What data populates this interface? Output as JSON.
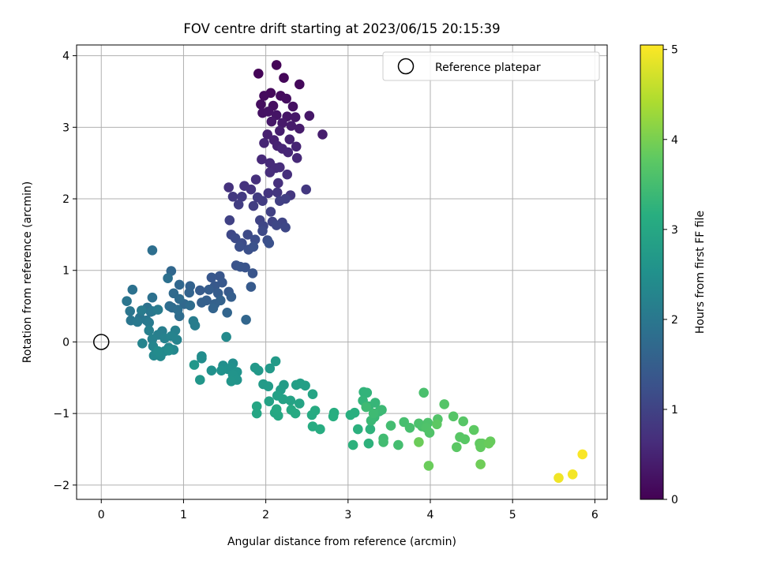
{
  "chart_data": {
    "type": "scatter",
    "title": "FOV centre drift starting at 2023/06/15 20:15:39",
    "xlabel": "Angular distance from reference (arcmin)",
    "ylabel": "Rotation from reference (arcmin)",
    "xlim": [
      -0.3,
      6.15
    ],
    "ylim": [
      -2.2,
      4.15
    ],
    "xticks": [
      0,
      1,
      2,
      3,
      4,
      5,
      6
    ],
    "yticks": [
      -2,
      -1,
      0,
      1,
      2,
      3,
      4
    ],
    "xtick_labels": [
      "0",
      "1",
      "2",
      "3",
      "4",
      "5",
      "6"
    ],
    "ytick_labels": [
      "−2",
      "−1",
      "0",
      "1",
      "2",
      "3",
      "4"
    ],
    "grid": true,
    "legend": {
      "position": "top-right",
      "entries": [
        "Reference platepar"
      ]
    },
    "reference_point": {
      "name": "Reference platepar",
      "x": 0,
      "y": 0
    },
    "colorbar": {
      "label": "Hours from first FF file",
      "colormap": "viridis",
      "range": [
        0,
        5.05
      ],
      "ticks": [
        0,
        1,
        2,
        3,
        4,
        5
      ],
      "tick_labels": [
        "0",
        "1",
        "2",
        "3",
        "4",
        "5"
      ]
    },
    "series": [
      {
        "c_encoding": "hours",
        "points": [
          [
            2.13,
            3.87,
            0.05
          ],
          [
            1.91,
            3.75,
            0.05
          ],
          [
            2.22,
            3.69,
            0.08
          ],
          [
            2.41,
            3.6,
            0.1
          ],
          [
            2.06,
            3.48,
            0.12
          ],
          [
            1.98,
            3.44,
            0.14
          ],
          [
            2.18,
            3.44,
            0.15
          ],
          [
            2.25,
            3.4,
            0.17
          ],
          [
            1.94,
            3.32,
            0.18
          ],
          [
            2.09,
            3.3,
            0.2
          ],
          [
            2.33,
            3.29,
            0.22
          ],
          [
            1.96,
            3.2,
            0.23
          ],
          [
            2.03,
            3.22,
            0.25
          ],
          [
            2.13,
            3.17,
            0.27
          ],
          [
            2.26,
            3.15,
            0.28
          ],
          [
            2.36,
            3.14,
            0.3
          ],
          [
            2.53,
            3.16,
            0.31
          ],
          [
            2.07,
            3.08,
            0.33
          ],
          [
            2.2,
            3.06,
            0.35
          ],
          [
            2.31,
            3.02,
            0.37
          ],
          [
            2.41,
            2.98,
            0.38
          ],
          [
            2.69,
            2.9,
            0.4
          ],
          [
            2.17,
            2.95,
            0.42
          ],
          [
            2.02,
            2.9,
            0.43
          ],
          [
            2.1,
            2.82,
            0.45
          ],
          [
            2.29,
            2.83,
            0.47
          ],
          [
            2.14,
            2.74,
            0.48
          ],
          [
            2.37,
            2.73,
            0.5
          ],
          [
            1.98,
            2.78,
            0.52
          ],
          [
            2.2,
            2.7,
            0.53
          ],
          [
            2.27,
            2.65,
            0.55
          ],
          [
            2.38,
            2.57,
            0.57
          ],
          [
            1.95,
            2.55,
            0.58
          ],
          [
            2.05,
            2.5,
            0.6
          ],
          [
            2.12,
            2.43,
            0.62
          ],
          [
            2.17,
            2.44,
            0.63
          ],
          [
            2.05,
            2.37,
            0.65
          ],
          [
            2.26,
            2.34,
            0.67
          ],
          [
            1.88,
            2.27,
            0.68
          ],
          [
            2.15,
            2.22,
            0.7
          ],
          [
            1.55,
            2.16,
            0.72
          ],
          [
            1.74,
            2.18,
            0.73
          ],
          [
            1.82,
            2.13,
            0.75
          ],
          [
            2.03,
            2.08,
            0.77
          ],
          [
            2.14,
            2.09,
            0.78
          ],
          [
            2.3,
            2.05,
            0.8
          ],
          [
            2.49,
            2.13,
            0.82
          ],
          [
            1.6,
            2.03,
            0.83
          ],
          [
            1.71,
            2.03,
            0.85
          ],
          [
            1.9,
            2.02,
            0.87
          ],
          [
            1.96,
            1.97,
            0.88
          ],
          [
            1.67,
            1.92,
            0.9
          ],
          [
            1.85,
            1.9,
            0.92
          ],
          [
            2.17,
            1.97,
            0.93
          ],
          [
            2.24,
            2.0,
            0.95
          ],
          [
            2.06,
            1.82,
            0.97
          ],
          [
            1.56,
            1.7,
            0.98
          ],
          [
            1.93,
            1.7,
            1.0
          ],
          [
            2.08,
            1.68,
            1.02
          ],
          [
            2.2,
            1.67,
            1.03
          ],
          [
            1.97,
            1.62,
            1.05
          ],
          [
            2.13,
            1.63,
            1.07
          ],
          [
            2.24,
            1.6,
            1.08
          ],
          [
            1.58,
            1.5,
            1.1
          ],
          [
            1.78,
            1.5,
            1.12
          ],
          [
            1.96,
            1.55,
            1.13
          ],
          [
            1.63,
            1.45,
            1.15
          ],
          [
            1.71,
            1.38,
            1.17
          ],
          [
            1.87,
            1.43,
            1.18
          ],
          [
            2.02,
            1.42,
            1.2
          ],
          [
            1.68,
            1.33,
            1.22
          ],
          [
            1.79,
            1.29,
            1.23
          ],
          [
            2.04,
            1.38,
            1.25
          ],
          [
            1.85,
            1.33,
            1.27
          ],
          [
            1.64,
            1.07,
            1.28
          ],
          [
            1.75,
            1.04,
            1.3
          ],
          [
            1.69,
            1.05,
            1.32
          ],
          [
            1.84,
            0.96,
            1.33
          ],
          [
            1.44,
            0.92,
            1.35
          ],
          [
            1.34,
            0.9,
            1.37
          ],
          [
            1.47,
            0.83,
            1.38
          ],
          [
            1.38,
            0.78,
            1.4
          ],
          [
            1.55,
            0.7,
            1.42
          ],
          [
            1.82,
            0.77,
            1.43
          ],
          [
            1.2,
            0.72,
            1.45
          ],
          [
            1.31,
            0.73,
            1.47
          ],
          [
            1.42,
            0.68,
            1.48
          ],
          [
            1.58,
            0.63,
            1.5
          ],
          [
            1.28,
            0.58,
            1.52
          ],
          [
            1.22,
            0.55,
            1.53
          ],
          [
            1.38,
            0.53,
            1.55
          ],
          [
            1.45,
            0.58,
            1.57
          ],
          [
            1.08,
            0.78,
            1.58
          ],
          [
            1.07,
            0.69,
            1.6
          ],
          [
            1.36,
            0.47,
            1.62
          ],
          [
            1.53,
            0.41,
            1.63
          ],
          [
            1.76,
            0.31,
            1.65
          ],
          [
            0.85,
            0.99,
            1.67
          ],
          [
            0.95,
            0.8,
            1.68
          ],
          [
            1.01,
            0.53,
            1.7
          ],
          [
            0.86,
            0.48,
            1.72
          ],
          [
            0.88,
            0.68,
            1.73
          ],
          [
            0.95,
            0.6,
            1.75
          ],
          [
            1.08,
            0.51,
            1.77
          ],
          [
            0.95,
            0.36,
            1.78
          ],
          [
            0.83,
            0.5,
            1.8
          ],
          [
            0.93,
            0.45,
            1.82
          ],
          [
            0.62,
            1.28,
            1.83
          ],
          [
            0.81,
            0.89,
            1.85
          ],
          [
            0.62,
            0.62,
            1.87
          ],
          [
            0.38,
            0.73,
            1.88
          ],
          [
            0.56,
            0.48,
            1.9
          ],
          [
            0.6,
            0.42,
            1.92
          ],
          [
            0.47,
            0.34,
            1.93
          ],
          [
            0.31,
            0.57,
            1.95
          ],
          [
            0.35,
            0.43,
            1.97
          ],
          [
            0.36,
            0.3,
            1.98
          ],
          [
            0.55,
            0.3,
            2.0
          ],
          [
            0.62,
            0.43,
            2.02
          ],
          [
            0.44,
            0.28,
            2.03
          ],
          [
            0.58,
            0.27,
            2.05
          ],
          [
            0.69,
            0.45,
            2.07
          ],
          [
            0.49,
            0.44,
            2.08
          ],
          [
            1.12,
            0.29,
            2.1
          ],
          [
            1.14,
            0.23,
            2.12
          ],
          [
            0.74,
            0.15,
            2.13
          ],
          [
            0.69,
            0.1,
            2.15
          ],
          [
            0.9,
            0.16,
            2.17
          ],
          [
            0.58,
            0.16,
            2.18
          ],
          [
            0.62,
            0.04,
            2.2
          ],
          [
            0.77,
            0.05,
            2.22
          ],
          [
            0.85,
            0.08,
            2.23
          ],
          [
            0.92,
            0.03,
            2.25
          ],
          [
            0.5,
            -0.02,
            2.27
          ],
          [
            0.63,
            -0.06,
            2.28
          ],
          [
            0.82,
            -0.08,
            2.3
          ],
          [
            0.88,
            -0.11,
            2.32
          ],
          [
            0.77,
            -0.13,
            2.33
          ],
          [
            0.64,
            -0.19,
            2.35
          ],
          [
            0.72,
            -0.2,
            2.37
          ],
          [
            1.52,
            0.07,
            2.38
          ],
          [
            0.69,
            -0.13,
            2.4
          ],
          [
            0.82,
            -0.12,
            2.42
          ],
          [
            1.22,
            -0.2,
            2.43
          ],
          [
            1.22,
            -0.23,
            2.45
          ],
          [
            1.6,
            -0.3,
            2.47
          ],
          [
            1.48,
            -0.33,
            2.48
          ],
          [
            1.58,
            -0.36,
            2.5
          ],
          [
            1.54,
            -0.38,
            2.52
          ],
          [
            1.34,
            -0.4,
            2.53
          ],
          [
            1.46,
            -0.4,
            2.55
          ],
          [
            1.65,
            -0.42,
            2.57
          ],
          [
            1.6,
            -0.46,
            2.58
          ],
          [
            1.65,
            -0.53,
            2.6
          ],
          [
            1.58,
            -0.55,
            2.62
          ],
          [
            1.2,
            -0.53,
            2.63
          ],
          [
            1.13,
            -0.32,
            2.65
          ],
          [
            1.87,
            -0.36,
            2.67
          ],
          [
            1.91,
            -0.4,
            2.68
          ],
          [
            2.05,
            -0.37,
            2.7
          ],
          [
            2.12,
            -0.27,
            2.72
          ],
          [
            1.97,
            -0.59,
            2.73
          ],
          [
            2.03,
            -0.62,
            2.75
          ],
          [
            2.22,
            -0.6,
            2.77
          ],
          [
            2.18,
            -0.67,
            2.78
          ],
          [
            2.37,
            -0.6,
            2.8
          ],
          [
            2.42,
            -0.58,
            2.82
          ],
          [
            2.48,
            -0.61,
            2.83
          ],
          [
            2.14,
            -0.75,
            2.85
          ],
          [
            2.21,
            -0.8,
            2.87
          ],
          [
            2.04,
            -0.83,
            2.88
          ],
          [
            2.3,
            -0.82,
            2.9
          ],
          [
            2.41,
            -0.86,
            2.92
          ],
          [
            2.57,
            -0.73,
            2.93
          ],
          [
            1.89,
            -0.9,
            2.95
          ],
          [
            1.89,
            -1.0,
            2.97
          ],
          [
            2.11,
            -0.99,
            2.98
          ],
          [
            2.15,
            -1.03,
            3.0
          ],
          [
            2.13,
            -0.94,
            3.02
          ],
          [
            2.31,
            -0.95,
            3.03
          ],
          [
            2.36,
            -1.0,
            3.05
          ],
          [
            2.56,
            -1.02,
            3.07
          ],
          [
            2.6,
            -0.96,
            3.08
          ],
          [
            2.57,
            -1.18,
            3.1
          ],
          [
            2.66,
            -1.22,
            3.12
          ],
          [
            2.83,
            -0.99,
            3.13
          ],
          [
            2.82,
            -1.04,
            3.15
          ],
          [
            3.03,
            -1.02,
            3.17
          ],
          [
            3.08,
            -0.99,
            3.18
          ],
          [
            3.12,
            -1.22,
            3.2
          ],
          [
            3.06,
            -1.44,
            3.22
          ],
          [
            3.25,
            -1.42,
            3.23
          ],
          [
            3.27,
            -1.22,
            3.25
          ],
          [
            3.19,
            -0.7,
            3.27
          ],
          [
            3.23,
            -0.71,
            3.28
          ],
          [
            3.18,
            -0.82,
            3.3
          ],
          [
            3.25,
            -0.9,
            3.32
          ],
          [
            3.33,
            -0.85,
            3.33
          ],
          [
            3.38,
            -0.97,
            3.35
          ],
          [
            3.32,
            -1.05,
            3.37
          ],
          [
            3.28,
            -1.1,
            3.38
          ],
          [
            3.41,
            -0.95,
            3.4
          ],
          [
            3.22,
            -0.91,
            3.42
          ],
          [
            3.31,
            -1.0,
            3.43
          ],
          [
            3.43,
            -1.35,
            3.45
          ],
          [
            3.43,
            -1.4,
            3.47
          ],
          [
            3.52,
            -1.17,
            3.48
          ],
          [
            3.61,
            -1.44,
            3.5
          ],
          [
            3.68,
            -1.12,
            3.52
          ],
          [
            3.75,
            -1.2,
            3.53
          ],
          [
            3.92,
            -0.71,
            3.55
          ],
          [
            3.86,
            -1.14,
            3.57
          ],
          [
            3.9,
            -1.18,
            3.58
          ],
          [
            3.97,
            -1.13,
            3.6
          ],
          [
            3.95,
            -1.2,
            3.62
          ],
          [
            3.99,
            -1.27,
            3.63
          ],
          [
            4.09,
            -1.08,
            3.65
          ],
          [
            4.17,
            -0.87,
            3.67
          ],
          [
            4.28,
            -1.04,
            3.68
          ],
          [
            4.4,
            -1.11,
            3.7
          ],
          [
            4.36,
            -1.33,
            3.72
          ],
          [
            4.42,
            -1.36,
            3.73
          ],
          [
            4.32,
            -1.47,
            3.75
          ],
          [
            4.08,
            -1.15,
            3.77
          ],
          [
            4.53,
            -1.23,
            3.78
          ],
          [
            4.6,
            -1.42,
            3.8
          ],
          [
            4.61,
            -1.47,
            3.82
          ],
          [
            4.63,
            -1.42,
            3.83
          ],
          [
            4.73,
            -1.39,
            3.85
          ],
          [
            4.71,
            -1.42,
            3.87
          ],
          [
            3.98,
            -1.73,
            3.88
          ],
          [
            3.86,
            -1.4,
            3.9
          ],
          [
            4.61,
            -1.71,
            3.92
          ],
          [
            5.56,
            -1.9,
            4.95
          ],
          [
            5.73,
            -1.85,
            4.98
          ],
          [
            5.85,
            -1.57,
            5.02
          ]
        ]
      }
    ]
  }
}
